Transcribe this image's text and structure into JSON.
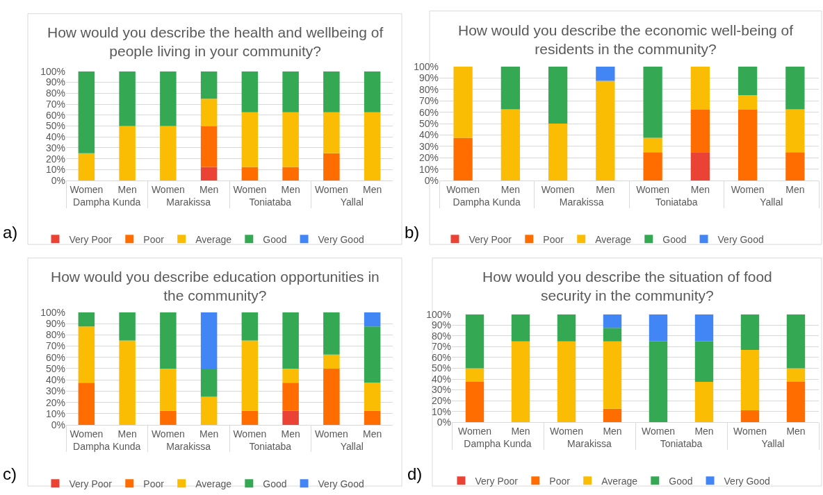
{
  "chart_data": [
    {
      "type": "bar",
      "stacked": true,
      "title": "How would you describe the health and wellbeing of people living in your community?",
      "categories": [
        "Women",
        "Men",
        "Women",
        "Men",
        "Women",
        "Men",
        "Women",
        "Men"
      ],
      "annotations": [
        "a)",
        "Dampha Kunda",
        "Marakissa",
        "Toniataba",
        "Yallal"
      ],
      "ylim": [
        0,
        100
      ],
      "yticks": [
        {
          "value": 0,
          "label": "0%"
        },
        {
          "value": 10,
          "label": "10%"
        },
        {
          "value": 20,
          "label": "20%"
        },
        {
          "value": 30,
          "label": "30%"
        },
        {
          "value": 40,
          "label": "40%"
        },
        {
          "value": 50,
          "label": "50%"
        },
        {
          "value": 60,
          "label": "60%"
        },
        {
          "value": 70,
          "label": "70%"
        },
        {
          "value": 80,
          "label": "80%"
        },
        {
          "value": 90,
          "label": "90%"
        },
        {
          "value": 100,
          "label": "100%"
        }
      ],
      "grid": "y",
      "legend": "bottom",
      "series": [
        {
          "name": "Very Poor",
          "color": "#ea4335",
          "values": [
            0,
            0,
            0,
            12.5,
            0,
            0,
            0,
            0
          ]
        },
        {
          "name": "Poor",
          "color": "#ff6d01",
          "values": [
            0,
            0,
            0,
            37.5,
            12.5,
            12.5,
            25,
            0
          ]
        },
        {
          "name": "Average",
          "color": "#fbbc04",
          "values": [
            25,
            50,
            50,
            25,
            50,
            50,
            37.5,
            62.5
          ]
        },
        {
          "name": "Good",
          "color": "#34a853",
          "values": [
            75,
            50,
            50,
            25,
            37.5,
            37.5,
            37.5,
            37.5
          ]
        },
        {
          "name": "Very Good",
          "color": "#4285f4",
          "values": [
            0,
            0,
            0,
            0,
            0,
            0,
            0,
            0
          ]
        }
      ]
    },
    {
      "type": "bar",
      "stacked": true,
      "title": "How would you describe the economic well-being of residents in the community?",
      "categories": [
        "Women",
        "Men",
        "Women",
        "Men",
        "Women",
        "Men",
        "Women",
        "Men"
      ],
      "annotations": [
        "b)",
        "Dampha Kunda",
        "Marakissa",
        "Toniataba",
        "Yallal"
      ],
      "ylim": [
        0,
        100
      ],
      "yticks": [
        {
          "value": 0,
          "label": "0%"
        },
        {
          "value": 10,
          "label": "10%"
        },
        {
          "value": 20,
          "label": "20%"
        },
        {
          "value": 30,
          "label": "30%"
        },
        {
          "value": 40,
          "label": "40%"
        },
        {
          "value": 50,
          "label": "50%"
        },
        {
          "value": 60,
          "label": "60%"
        },
        {
          "value": 70,
          "label": "70%"
        },
        {
          "value": 80,
          "label": "80%"
        },
        {
          "value": 90,
          "label": "90%"
        },
        {
          "value": 100,
          "label": "100%"
        }
      ],
      "grid": "y",
      "legend": "bottom",
      "series": [
        {
          "name": "Very Poor",
          "color": "#ea4335",
          "values": [
            0,
            0,
            0,
            0,
            0,
            25,
            0,
            0
          ]
        },
        {
          "name": "Poor",
          "color": "#ff6d01",
          "values": [
            37.5,
            0,
            0,
            0,
            25,
            37.5,
            62.5,
            25
          ]
        },
        {
          "name": "Average",
          "color": "#fbbc04",
          "values": [
            62.5,
            62.5,
            50,
            87.5,
            12.5,
            37.5,
            12.5,
            37.5
          ]
        },
        {
          "name": "Good",
          "color": "#34a853",
          "values": [
            0,
            37.5,
            50,
            0,
            62.5,
            0,
            25,
            37.5
          ]
        },
        {
          "name": "Very Good",
          "color": "#4285f4",
          "values": [
            0,
            0,
            0,
            12.5,
            0,
            0,
            0,
            0
          ]
        }
      ]
    },
    {
      "type": "bar",
      "stacked": true,
      "title": "How would you describe education opportunities in the community?",
      "categories": [
        "Women",
        "Men",
        "Women",
        "Men",
        "Women",
        "Men",
        "Women",
        "Men"
      ],
      "annotations": [
        "c)",
        "Dampha Kunda",
        "Marakissa",
        "Toniataba",
        "Yallal"
      ],
      "ylim": [
        0,
        100
      ],
      "yticks": [
        {
          "value": 0,
          "label": "0%"
        },
        {
          "value": 10,
          "label": "10%"
        },
        {
          "value": 20,
          "label": "20%"
        },
        {
          "value": 30,
          "label": "30%"
        },
        {
          "value": 40,
          "label": "40%"
        },
        {
          "value": 50,
          "label": "50%"
        },
        {
          "value": 60,
          "label": "60%"
        },
        {
          "value": 70,
          "label": "70%"
        },
        {
          "value": 80,
          "label": "80%"
        },
        {
          "value": 90,
          "label": "90%"
        },
        {
          "value": 100,
          "label": "100%"
        }
      ],
      "grid": "y",
      "legend": "bottom",
      "series": [
        {
          "name": "Very Poor",
          "color": "#ea4335",
          "values": [
            0,
            0,
            0,
            0,
            0,
            12.5,
            0,
            0
          ]
        },
        {
          "name": "Poor",
          "color": "#ff6d01",
          "values": [
            37.5,
            0,
            12.5,
            0,
            12.5,
            25,
            50,
            12.5
          ]
        },
        {
          "name": "Average",
          "color": "#fbbc04",
          "values": [
            50,
            75,
            37.5,
            25,
            62.5,
            12.5,
            12.5,
            25
          ]
        },
        {
          "name": "Good",
          "color": "#34a853",
          "values": [
            12.5,
            25,
            50,
            25,
            25,
            50,
            37.5,
            50
          ]
        },
        {
          "name": "Very Good",
          "color": "#4285f4",
          "values": [
            0,
            0,
            0,
            50,
            0,
            0,
            0,
            12.5
          ]
        }
      ]
    },
    {
      "type": "bar",
      "stacked": true,
      "title": "How would you describe the situation of food security in the community?",
      "categories": [
        "Women",
        "Men",
        "Women",
        "Men",
        "Women",
        "Men",
        "Women",
        "Men"
      ],
      "annotations": [
        "d)",
        "Dampha Kunda",
        "Marakissa",
        "Toniataba",
        "Yallal"
      ],
      "ylim": [
        0,
        100
      ],
      "yticks": [
        {
          "value": 0,
          "label": "0%"
        },
        {
          "value": 10,
          "label": "10%"
        },
        {
          "value": 20,
          "label": "20%"
        },
        {
          "value": 30,
          "label": "30%"
        },
        {
          "value": 40,
          "label": "40%"
        },
        {
          "value": 50,
          "label": "50%"
        },
        {
          "value": 60,
          "label": "60%"
        },
        {
          "value": 70,
          "label": "70%"
        },
        {
          "value": 80,
          "label": "80%"
        },
        {
          "value": 90,
          "label": "90%"
        },
        {
          "value": 100,
          "label": "100%"
        }
      ],
      "grid": "y",
      "legend": "bottom",
      "series": [
        {
          "name": "Very Poor",
          "color": "#ea4335",
          "values": [
            0,
            0,
            0,
            0,
            0,
            0,
            0,
            0
          ]
        },
        {
          "name": "Poor",
          "color": "#ff6d01",
          "values": [
            37.5,
            0,
            0,
            12.5,
            0,
            0,
            11,
            37.5
          ]
        },
        {
          "name": "Average",
          "color": "#fbbc04",
          "values": [
            12.5,
            75,
            75,
            62.5,
            0,
            37.5,
            56,
            12.5
          ]
        },
        {
          "name": "Good",
          "color": "#34a853",
          "values": [
            50,
            25,
            25,
            12.5,
            75,
            37.5,
            33,
            50
          ]
        },
        {
          "name": "Very Good",
          "color": "#4285f4",
          "values": [
            0,
            0,
            0,
            12.5,
            25,
            25,
            0,
            0
          ]
        }
      ]
    }
  ]
}
